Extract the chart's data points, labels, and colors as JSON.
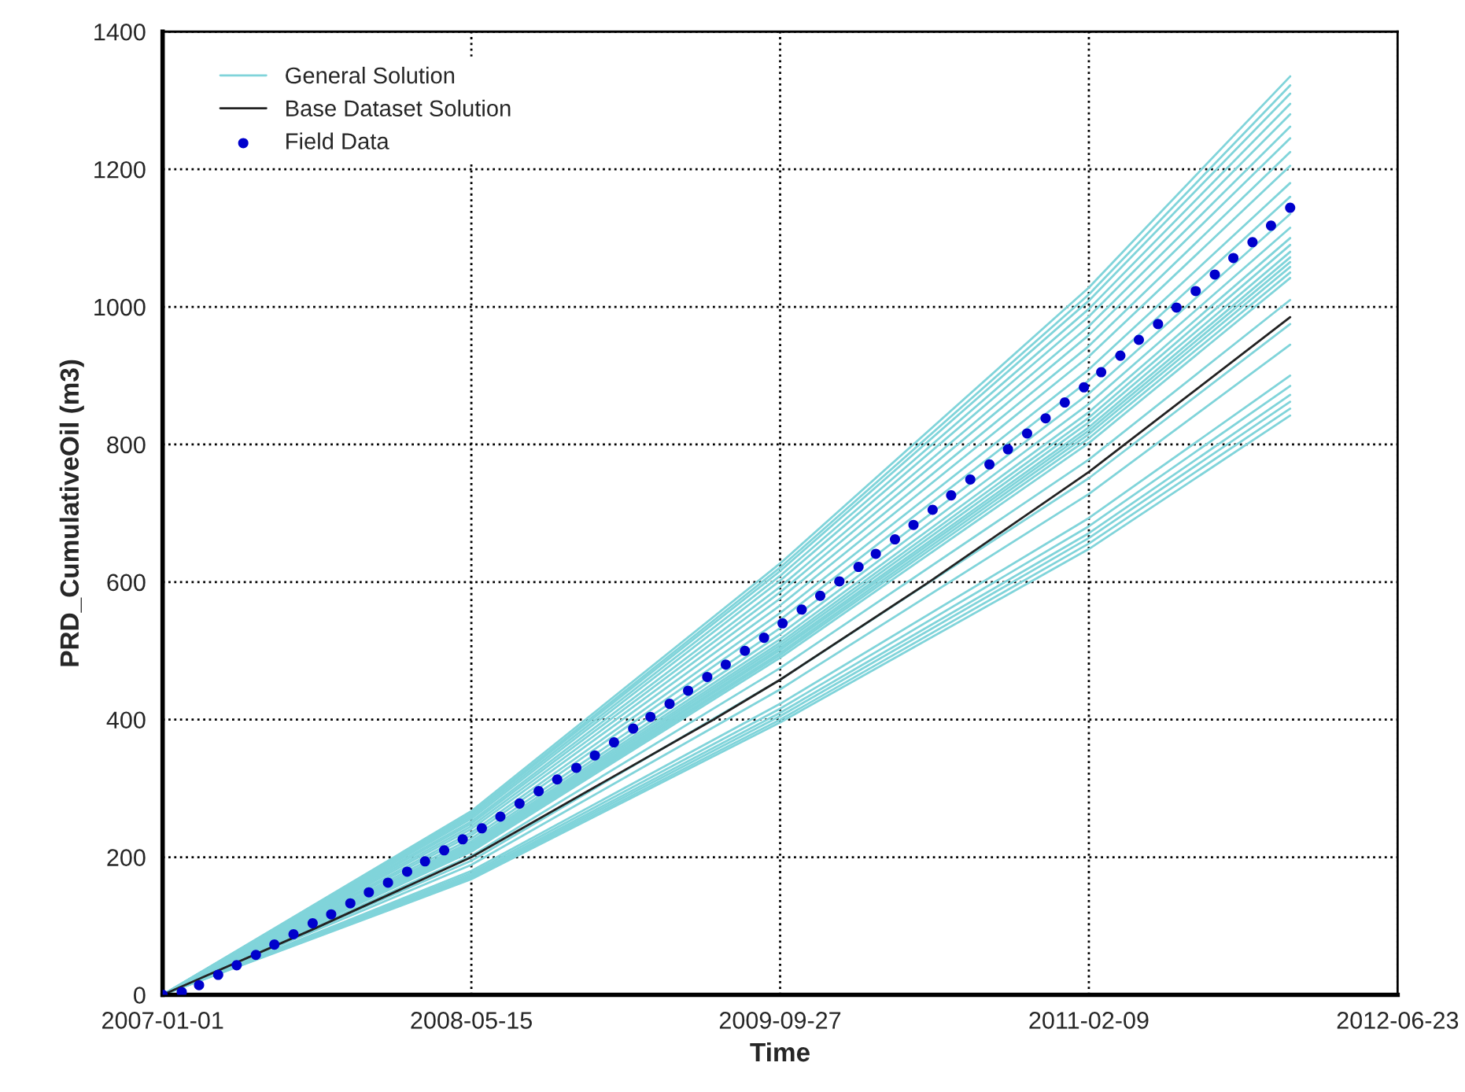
{
  "chart_data": {
    "type": "line",
    "xlabel": "Time",
    "ylabel": "PRD_CumulativeOil (m3)",
    "x": [
      "2007-01-01",
      "2008-05-15",
      "2009-09-27",
      "2011-02-09",
      "2012-01-01"
    ],
    "xlim": [
      "2007-01-01",
      "2012-06-23"
    ],
    "xticks": [
      "2007-01-01",
      "2008-05-15",
      "2009-09-27",
      "2011-02-09",
      "2012-06-23"
    ],
    "ylim": [
      0,
      1400
    ],
    "yticks": [
      0,
      200,
      400,
      600,
      800,
      1000,
      1200,
      1400
    ],
    "grid": true,
    "legend": "top left",
    "line_style": "solid",
    "series": [
      {
        "name": "General Solution",
        "color": "#80d4da",
        "values": [
          0,
          267,
          627,
          1028,
          1335
        ]
      },
      {
        "color": "#80d4da",
        "values": [
          0,
          264,
          621,
          1018,
          1322
        ]
      },
      {
        "color": "#80d4da",
        "values": [
          0,
          262,
          616,
          1009,
          1310
        ]
      },
      {
        "color": "#80d4da",
        "values": [
          0,
          259,
          609,
          997,
          1295
        ]
      },
      {
        "color": "#80d4da",
        "values": [
          0,
          256,
          602,
          986,
          1280
        ]
      },
      {
        "color": "#80d4da",
        "values": [
          0,
          252,
          593,
          972,
          1262
        ]
      },
      {
        "color": "#80d4da",
        "values": [
          0,
          249,
          585,
          959,
          1245
        ]
      },
      {
        "color": "#80d4da",
        "values": [
          0,
          245,
          576,
          943,
          1225
        ]
      },
      {
        "color": "#80d4da",
        "values": [
          0,
          241,
          566,
          928,
          1205
        ]
      },
      {
        "color": "#80d4da",
        "values": [
          0,
          236,
          555,
          909,
          1180
        ]
      },
      {
        "color": "#80d4da",
        "values": [
          0,
          232,
          545,
          893,
          1160
        ]
      },
      {
        "color": "#80d4da",
        "values": [
          0,
          227,
          533,
          874,
          1135
        ]
      },
      {
        "color": "#80d4da",
        "values": [
          0,
          223,
          524,
          859,
          1115
        ]
      },
      {
        "color": "#80d4da",
        "values": [
          0,
          220,
          517,
          847,
          1100
        ]
      },
      {
        "color": "#80d4da",
        "values": [
          0,
          218,
          512,
          839,
          1090
        ]
      },
      {
        "color": "#80d4da",
        "values": [
          0,
          216,
          508,
          832,
          1080
        ]
      },
      {
        "color": "#80d4da",
        "values": [
          0,
          214,
          504,
          825,
          1072
        ]
      },
      {
        "color": "#80d4da",
        "values": [
          0,
          213,
          501,
          820,
          1065
        ]
      },
      {
        "color": "#80d4da",
        "values": [
          0,
          212,
          497,
          815,
          1058
        ]
      },
      {
        "color": "#80d4da",
        "values": [
          0,
          210,
          494,
          809,
          1050
        ]
      },
      {
        "color": "#80d4da",
        "values": [
          0,
          208,
          490,
          802,
          1042
        ]
      },
      {
        "color": "#80d4da",
        "values": [
          0,
          202,
          475,
          778,
          1010
        ]
      },
      {
        "color": "#80d4da",
        "values": [
          0,
          195,
          458,
          751,
          975
        ]
      },
      {
        "color": "#80d4da",
        "values": [
          0,
          189,
          444,
          728,
          945
        ]
      },
      {
        "color": "#80d4da",
        "values": [
          0,
          180,
          423,
          693,
          900
        ]
      },
      {
        "color": "#80d4da",
        "values": [
          0,
          177,
          416,
          681,
          885
        ]
      },
      {
        "color": "#80d4da",
        "values": [
          0,
          174,
          410,
          671,
          872
        ]
      },
      {
        "color": "#80d4da",
        "values": [
          0,
          172,
          405,
          664,
          862
        ]
      },
      {
        "color": "#80d4da",
        "values": [
          0,
          170,
          400,
          656,
          852
        ]
      },
      {
        "color": "#80d4da",
        "values": [
          0,
          168,
          396,
          648,
          842
        ]
      },
      {
        "name": "Base Dataset Solution",
        "color": "#222222",
        "x": [
          "2007-01-01",
          "2007-09-01",
          "2008-05-15",
          "2009-06-11",
          "2009-09-27",
          "2010-05-26",
          "2011-02-09",
          "2012-01-01"
        ],
        "values": [
          0,
          95,
          200,
          400,
          458,
          600,
          760,
          985
        ]
      },
      {
        "name": "Field Data",
        "type": "scatter",
        "marker": "circle",
        "color": "#0000cc",
        "x": [
          "2007-01-01",
          "2007-02-01",
          "2007-03-01",
          "2007-04-01",
          "2007-05-01",
          "2007-06-01",
          "2007-07-01",
          "2007-08-01",
          "2007-09-01",
          "2007-10-01",
          "2007-11-01",
          "2007-12-01",
          "2008-01-01",
          "2008-02-01",
          "2008-03-01",
          "2008-04-01",
          "2008-05-01",
          "2008-06-01",
          "2008-07-01",
          "2008-08-01",
          "2008-09-01",
          "2008-10-01",
          "2008-11-01",
          "2008-12-01",
          "2009-01-01",
          "2009-02-01",
          "2009-03-01",
          "2009-04-01",
          "2009-05-01",
          "2009-06-01",
          "2009-07-01",
          "2009-08-01",
          "2009-09-01",
          "2009-10-01",
          "2009-11-01",
          "2009-12-01",
          "2010-01-01",
          "2010-02-01",
          "2010-03-01",
          "2010-04-01",
          "2010-05-01",
          "2010-06-01",
          "2010-07-01",
          "2010-08-01",
          "2010-09-01",
          "2010-10-01",
          "2010-11-01",
          "2010-12-01",
          "2011-01-01",
          "2011-02-01",
          "2011-03-01",
          "2011-04-01",
          "2011-05-01",
          "2011-06-01",
          "2011-07-01",
          "2011-08-01",
          "2011-09-01",
          "2011-10-01",
          "2011-11-01",
          "2011-12-01",
          "2012-01-01"
        ],
        "values": [
          0,
          4,
          14,
          29,
          43,
          58,
          73,
          88,
          104,
          117,
          133,
          149,
          163,
          179,
          194,
          210,
          226,
          242,
          259,
          278,
          296,
          313,
          330,
          348,
          367,
          387,
          404,
          423,
          442,
          462,
          480,
          500,
          519,
          540,
          560,
          580,
          601,
          622,
          641,
          662,
          683,
          705,
          726,
          749,
          771,
          793,
          816,
          838,
          861,
          883,
          905,
          929,
          952,
          975,
          999,
          1023,
          1047,
          1071,
          1094,
          1118,
          1144
        ]
      }
    ]
  }
}
